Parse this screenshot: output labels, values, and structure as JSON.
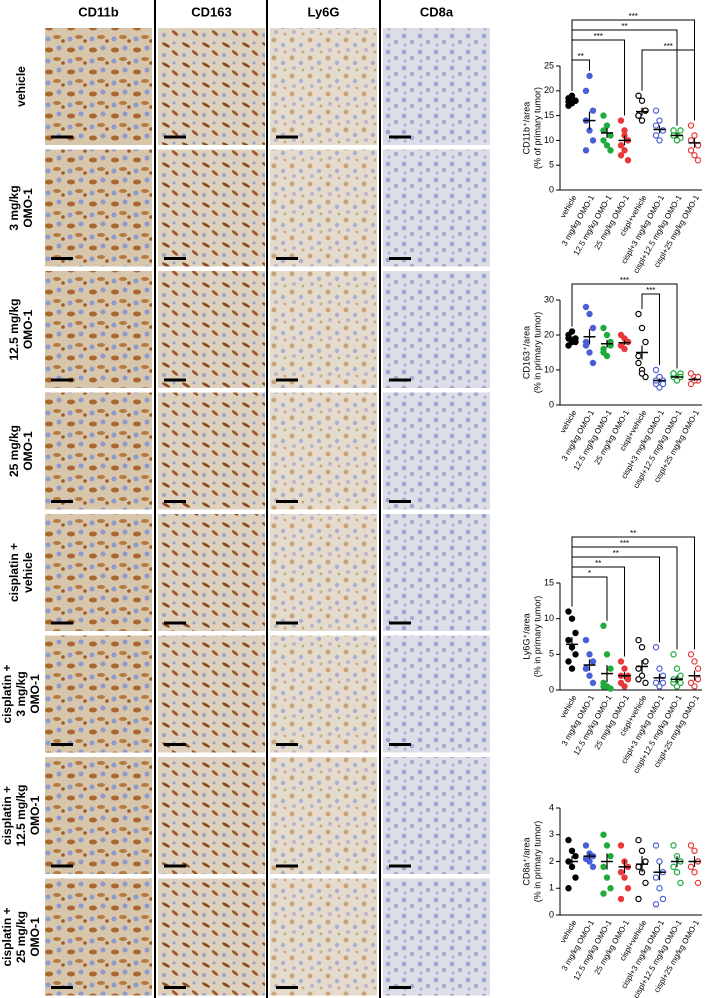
{
  "columns": [
    "CD11b",
    "CD163",
    "Ly6G",
    "CD8a"
  ],
  "rows": [
    [
      "vehicle"
    ],
    [
      "3 mg/kg",
      "OMO-1"
    ],
    [
      "12.5 mg/kg",
      "OMO-1"
    ],
    [
      "25 mg/kg",
      "OMO-1"
    ],
    [
      "cisplatin +",
      "vehicle"
    ],
    [
      "cisplatin +",
      "3 mg/kg",
      "OMO-1"
    ],
    [
      "cisplatin +",
      "12.5 mg/kg",
      "OMO-1"
    ],
    [
      "cisplatin +",
      "25 mg/kg",
      "OMO-1"
    ]
  ],
  "chart_data": [
    {
      "type": "dot",
      "ylabel": [
        "CD11b⁺/area",
        "(% of primary tumor)"
      ],
      "categories": [
        "vehicle",
        "3 mg/kg OMO-1",
        "12.5 mg/kg OMO-1",
        "25 mg/kg OMO-1",
        "cispl+vehicle",
        "cispl+3 mg/kg OMO-1",
        "cispl+12.5 mg/kg OMO-1",
        "cispl+25 mg/kg OMO-1"
      ],
      "colors": [
        "#000000",
        "#4a5fd6",
        "#1faa3a",
        "#e8383a",
        "#000000",
        "#4a5fd6",
        "#1faa3a",
        "#e8383a"
      ],
      "filled": [
        true,
        true,
        true,
        true,
        false,
        false,
        false,
        false
      ],
      "points": [
        [
          17,
          17.5,
          18,
          18.5,
          19,
          18,
          17.8
        ],
        [
          20,
          23,
          16,
          14,
          12,
          10,
          8
        ],
        [
          15,
          13,
          11,
          10,
          9,
          8,
          12
        ],
        [
          14,
          12,
          10,
          9,
          8,
          6,
          7,
          11
        ],
        [
          19,
          18,
          16,
          15,
          14,
          16,
          15
        ],
        [
          16,
          14,
          12,
          11,
          10,
          12,
          13
        ],
        [
          12,
          11,
          10.5,
          11,
          10,
          12,
          11
        ],
        [
          13,
          11,
          9,
          8,
          7,
          6,
          10
        ]
      ],
      "means": [
        18,
        14,
        11.5,
        10,
        15.8,
        12.2,
        11,
        9.5
      ],
      "errors": [
        0.4,
        1.8,
        1,
        1,
        0.8,
        0.8,
        0.5,
        1
      ],
      "ylim": [
        0,
        25
      ],
      "yticks": [
        0,
        5,
        10,
        15,
        20,
        25
      ],
      "significance": [
        {
          "label": "***",
          "from": "vehicle",
          "to": "cispl+25 mg/kg OMO-1"
        },
        {
          "label": "**",
          "from": "vehicle",
          "to": "cispl+12.5 mg/kg OMO-1"
        },
        {
          "label": "***",
          "from": "vehicle",
          "to": "25 mg/kg OMO-1"
        },
        {
          "label": "***",
          "from": "cispl+vehicle",
          "to": "cispl+25 mg/kg OMO-1"
        },
        {
          "label": "**",
          "from": "vehicle",
          "to": "3 mg/kg OMO-1"
        }
      ]
    },
    {
      "type": "dot",
      "ylabel": [
        "CD163⁺/area",
        "(% in primary tumor)"
      ],
      "categories": [
        "vehicle",
        "3 mg/kg OMO-1",
        "12.5 mg/kg OMO-1",
        "25 mg/kg OMO-1",
        "cispl+vehicle",
        "cispl+3 mg/kg OMO-1",
        "cispl+12.5 mg/kg OMO-1",
        "cispl+25 mg/kg OMO-1"
      ],
      "colors": [
        "#000000",
        "#4a5fd6",
        "#1faa3a",
        "#e8383a",
        "#000000",
        "#4a5fd6",
        "#1faa3a",
        "#e8383a"
      ],
      "filled": [
        true,
        true,
        true,
        true,
        false,
        false,
        false,
        false
      ],
      "points": [
        [
          17,
          18,
          19,
          20,
          21,
          18,
          19
        ],
        [
          28,
          26,
          22,
          18,
          15,
          12,
          17
        ],
        [
          22,
          20,
          18,
          16,
          14,
          17,
          15
        ],
        [
          20,
          19,
          18,
          17,
          16,
          18,
          17
        ],
        [
          26,
          22,
          18,
          14,
          10,
          8,
          12,
          9
        ],
        [
          10,
          8,
          7,
          6,
          5,
          6,
          7,
          8
        ],
        [
          9,
          8,
          9,
          8,
          7,
          8,
          9
        ],
        [
          9,
          8,
          7,
          6,
          7,
          8
        ]
      ],
      "means": [
        19,
        19.5,
        17.5,
        17.8,
        15,
        7,
        8,
        7.3
      ],
      "errors": [
        0.6,
        2.2,
        1.1,
        0.6,
        2,
        0.6,
        0.4,
        0.5
      ],
      "ylim": [
        0,
        30
      ],
      "yticks": [
        0,
        10,
        20,
        30
      ],
      "significance": [
        {
          "label": "***",
          "from": "vehicle",
          "to": "cispl+12.5 mg/kg OMO-1"
        },
        {
          "label": "***",
          "from": "cispl+vehicle",
          "to": "cispl+3 mg/kg OMO-1"
        }
      ]
    },
    {
      "type": "dot",
      "ylabel": [
        "Ly6G⁺/area",
        "(% in primary tumor)"
      ],
      "categories": [
        "vehicle",
        "3 mg/kg OMO-1",
        "12.5 mg/kg OMO-1",
        "25 mg/kg OMO-1",
        "cispl+vehicle",
        "cispl+3 mg/kg OMO-1",
        "cispl+12.5 mg/kg OMO-1",
        "cispl+25 mg/kg OMO-1"
      ],
      "colors": [
        "#000000",
        "#4a5fd6",
        "#1faa3a",
        "#e8383a",
        "#000000",
        "#4a5fd6",
        "#1faa3a",
        "#e8383a"
      ],
      "filled": [
        true,
        true,
        true,
        true,
        false,
        false,
        false,
        false
      ],
      "points": [
        [
          11,
          10,
          8,
          7,
          6,
          5,
          4,
          3
        ],
        [
          7,
          5,
          4,
          3,
          2,
          1,
          3
        ],
        [
          9,
          5,
          3,
          1,
          0.5,
          0.2,
          0.5
        ],
        [
          4,
          3,
          2,
          1,
          0.5,
          1.5,
          2
        ],
        [
          7,
          6,
          4,
          3,
          2,
          1,
          1.5
        ],
        [
          6,
          3,
          2,
          1,
          0.5,
          1
        ],
        [
          5,
          3,
          2,
          1,
          0.5,
          1,
          1.5
        ],
        [
          5,
          4,
          3,
          1,
          0.5,
          1.5
        ]
      ],
      "means": [
        6.4,
        3.5,
        2.3,
        2,
        3.3,
        1.7,
        1.5,
        2
      ],
      "errors": [
        1,
        0.8,
        1.2,
        0.5,
        0.9,
        0.6,
        0.5,
        0.7
      ],
      "ylim": [
        0,
        15
      ],
      "yticks": [
        0,
        5,
        10,
        15
      ],
      "significance": [
        {
          "label": "**",
          "from": "vehicle",
          "to": "cispl+25 mg/kg OMO-1"
        },
        {
          "label": "***",
          "from": "vehicle",
          "to": "cispl+12.5 mg/kg OMO-1"
        },
        {
          "label": "**",
          "from": "vehicle",
          "to": "cispl+3 mg/kg OMO-1"
        },
        {
          "label": "**",
          "from": "vehicle",
          "to": "25 mg/kg OMO-1"
        },
        {
          "label": "*",
          "from": "vehicle",
          "to": "12.5 mg/kg OMO-1"
        }
      ]
    },
    {
      "type": "dot",
      "ylabel": [
        "CD8a⁺/area",
        "(% in primary tumor)"
      ],
      "categories": [
        "vehicle",
        "3 mg/kg OMO-1",
        "12.5 mg/kg OMO-1",
        "25 mg/kg OMO-1",
        "cispl+vehicle",
        "cispl+3 mg/kg OMO-1",
        "cispl+12.5 mg/kg OMO-1",
        "cispl+25 mg/kg OMO-1"
      ],
      "colors": [
        "#000000",
        "#4a5fd6",
        "#1faa3a",
        "#e8383a",
        "#000000",
        "#4a5fd6",
        "#1faa3a",
        "#e8383a"
      ],
      "filled": [
        true,
        true,
        true,
        true,
        false,
        false,
        false,
        false
      ],
      "points": [
        [
          2.8,
          2.4,
          2.2,
          2,
          1.8,
          1.4,
          1
        ],
        [
          2.6,
          2.3,
          2.2,
          2.1,
          2,
          1.8
        ],
        [
          3,
          2.6,
          2.2,
          1.8,
          1.4,
          1,
          0.8
        ],
        [
          2.6,
          2,
          1.8,
          1.6,
          1.4,
          1,
          0.6
        ],
        [
          2.8,
          2.4,
          2,
          1.8,
          1.6,
          1.2,
          0.6
        ],
        [
          2.6,
          2,
          1.6,
          1.4,
          1,
          0.6,
          0.4
        ],
        [
          2.6,
          2.2,
          2,
          1.8,
          1.6,
          1.2
        ],
        [
          2.6,
          2.4,
          2,
          1.8,
          1.6,
          1.2
        ]
      ],
      "means": [
        2,
        2.2,
        2,
        1.8,
        1.9,
        1.6,
        2,
        2
      ],
      "errors": [
        0.2,
        0.1,
        0.3,
        0.25,
        0.3,
        0.3,
        0.2,
        0.2
      ],
      "ylim": [
        0,
        4
      ],
      "yticks": [
        0,
        1,
        2,
        3,
        4
      ],
      "significance": []
    }
  ]
}
